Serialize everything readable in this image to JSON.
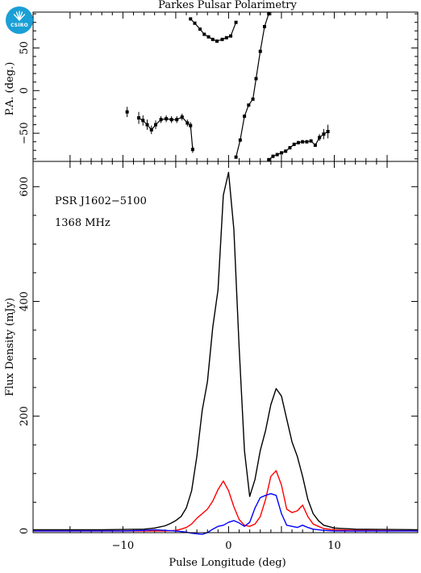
{
  "logo": {
    "text": "CSIRO",
    "color": "#1a9fd6"
  },
  "chart_data": [
    {
      "type": "scatter",
      "title": "Parkes Pulsar Polarimetry",
      "ylabel": "P.A. (deg.)",
      "xlim": [
        -18.5,
        17.9
      ],
      "ylim": [
        -83,
        92
      ],
      "yticks": [
        -50,
        0,
        50
      ],
      "xticks": [
        -10,
        0,
        10
      ],
      "series": [
        {
          "color": "#000000",
          "segments": [
            {
              "x": [
                -9.6
              ],
              "y": [
                -25
              ],
              "err": [
                6
              ]
            },
            {
              "x": [
                -8.5,
                -8.1,
                -7.7,
                -7.3,
                -6.9,
                -6.4,
                -5.9,
                -5.4,
                -4.9,
                -4.4,
                -3.9,
                -3.6,
                -3.4
              ],
              "y": [
                -32,
                -35,
                -40,
                -46,
                -40,
                -34,
                -33,
                -34,
                -34,
                -31,
                -38,
                -41,
                -69
              ],
              "err": [
                7,
                6,
                6,
                5,
                5,
                4,
                4,
                4,
                4,
                4,
                4,
                4,
                4
              ]
            },
            {
              "x": [
                -3.6,
                -3.2,
                -2.7,
                -2.3,
                -1.9,
                -1.5,
                -1.1,
                -0.6,
                -0.2,
                0.2,
                0.7
              ],
              "y": [
                84,
                79,
                72,
                66,
                63,
                60,
                58,
                60,
                62,
                64,
                80
              ]
            },
            {
              "x": [
                0.7,
                1.1,
                1.5,
                1.9,
                2.3,
                2.6,
                3.0,
                3.4,
                3.8
              ],
              "y": [
                -78,
                -58,
                -30,
                -17,
                -10,
                14,
                46,
                75,
                90
              ]
            },
            {
              "x": [
                3.8,
                4.2,
                4.6,
                5.0,
                5.4,
                5.8,
                6.2,
                6.6,
                7.0,
                7.4,
                7.8,
                8.2,
                8.6,
                9.0,
                9.4
              ],
              "y": [
                -81,
                -77,
                -75,
                -73,
                -71,
                -67,
                -63,
                -61,
                -60,
                -60,
                -59,
                -64,
                -55,
                -51,
                -48
              ],
              "err": [
                2,
                2,
                2,
                2,
                2,
                2,
                2,
                2,
                2,
                2,
                2,
                2,
                4,
                6,
                8
              ]
            }
          ]
        }
      ]
    },
    {
      "type": "line",
      "title": "",
      "xlabel": "Pulse Longitude (deg)",
      "ylabel": "Flux Density (mJy)",
      "xlim": [
        -18.5,
        17.9
      ],
      "ylim": [
        -3,
        644
      ],
      "xticks": [
        -10,
        0,
        10
      ],
      "yticks": [
        0,
        200,
        400,
        600
      ],
      "annotations": [
        "PSR J1602−5100",
        "1368 MHz"
      ],
      "series": [
        {
          "color": "#000000",
          "x": [
            -18.5,
            -12,
            -8,
            -7,
            -6,
            -5.5,
            -5,
            -4.5,
            -4,
            -3.5,
            -3,
            -2.5,
            -2,
            -1.5,
            -1,
            -0.5,
            0,
            0.5,
            1,
            1.5,
            2,
            2.5,
            3,
            3.5,
            4,
            4.5,
            5,
            5.5,
            6,
            6.5,
            7,
            7.5,
            8,
            8.5,
            9,
            10,
            12,
            17.9
          ],
          "y": [
            2,
            2,
            3,
            5,
            9,
            13,
            18,
            25,
            40,
            70,
            130,
            210,
            260,
            355,
            420,
            585,
            625,
            525,
            320,
            140,
            60,
            90,
            140,
            175,
            220,
            248,
            235,
            195,
            155,
            130,
            95,
            55,
            30,
            18,
            10,
            5,
            3,
            2
          ]
        },
        {
          "color": "#ff0000",
          "x": [
            -18.5,
            -10,
            -6,
            -5,
            -4.5,
            -4,
            -3.5,
            -3,
            -2.5,
            -2,
            -1.5,
            -1,
            -0.5,
            0,
            0.5,
            1,
            1.5,
            2,
            2.5,
            3,
            3.5,
            4,
            4.5,
            5,
            5.5,
            6,
            6.5,
            7,
            7.5,
            8,
            8.5,
            9,
            10,
            12,
            17.9
          ],
          "y": [
            0,
            0,
            0,
            1,
            3,
            6,
            12,
            22,
            30,
            38,
            52,
            72,
            87,
            70,
            42,
            20,
            10,
            8,
            12,
            25,
            55,
            95,
            105,
            80,
            38,
            32,
            35,
            45,
            25,
            12,
            8,
            4,
            2,
            1,
            0
          ]
        },
        {
          "color": "#0000ff",
          "x": [
            -18.5,
            -10,
            -8,
            -7,
            -6,
            -5,
            -4,
            -3.5,
            -3,
            -2.5,
            -2,
            -1.5,
            -1,
            -0.5,
            0,
            0.5,
            1,
            1.5,
            2,
            2.5,
            3,
            3.5,
            4,
            4.5,
            5,
            5.5,
            6,
            6.5,
            7,
            7.5,
            8,
            9,
            10,
            12,
            17.9
          ],
          "y": [
            0,
            0,
            1,
            2,
            1,
            0,
            -2,
            -4,
            -5,
            -6,
            -3,
            3,
            8,
            10,
            15,
            18,
            14,
            8,
            15,
            40,
            58,
            62,
            65,
            62,
            30,
            10,
            8,
            6,
            10,
            6,
            3,
            1,
            0,
            0,
            0
          ]
        }
      ]
    }
  ]
}
